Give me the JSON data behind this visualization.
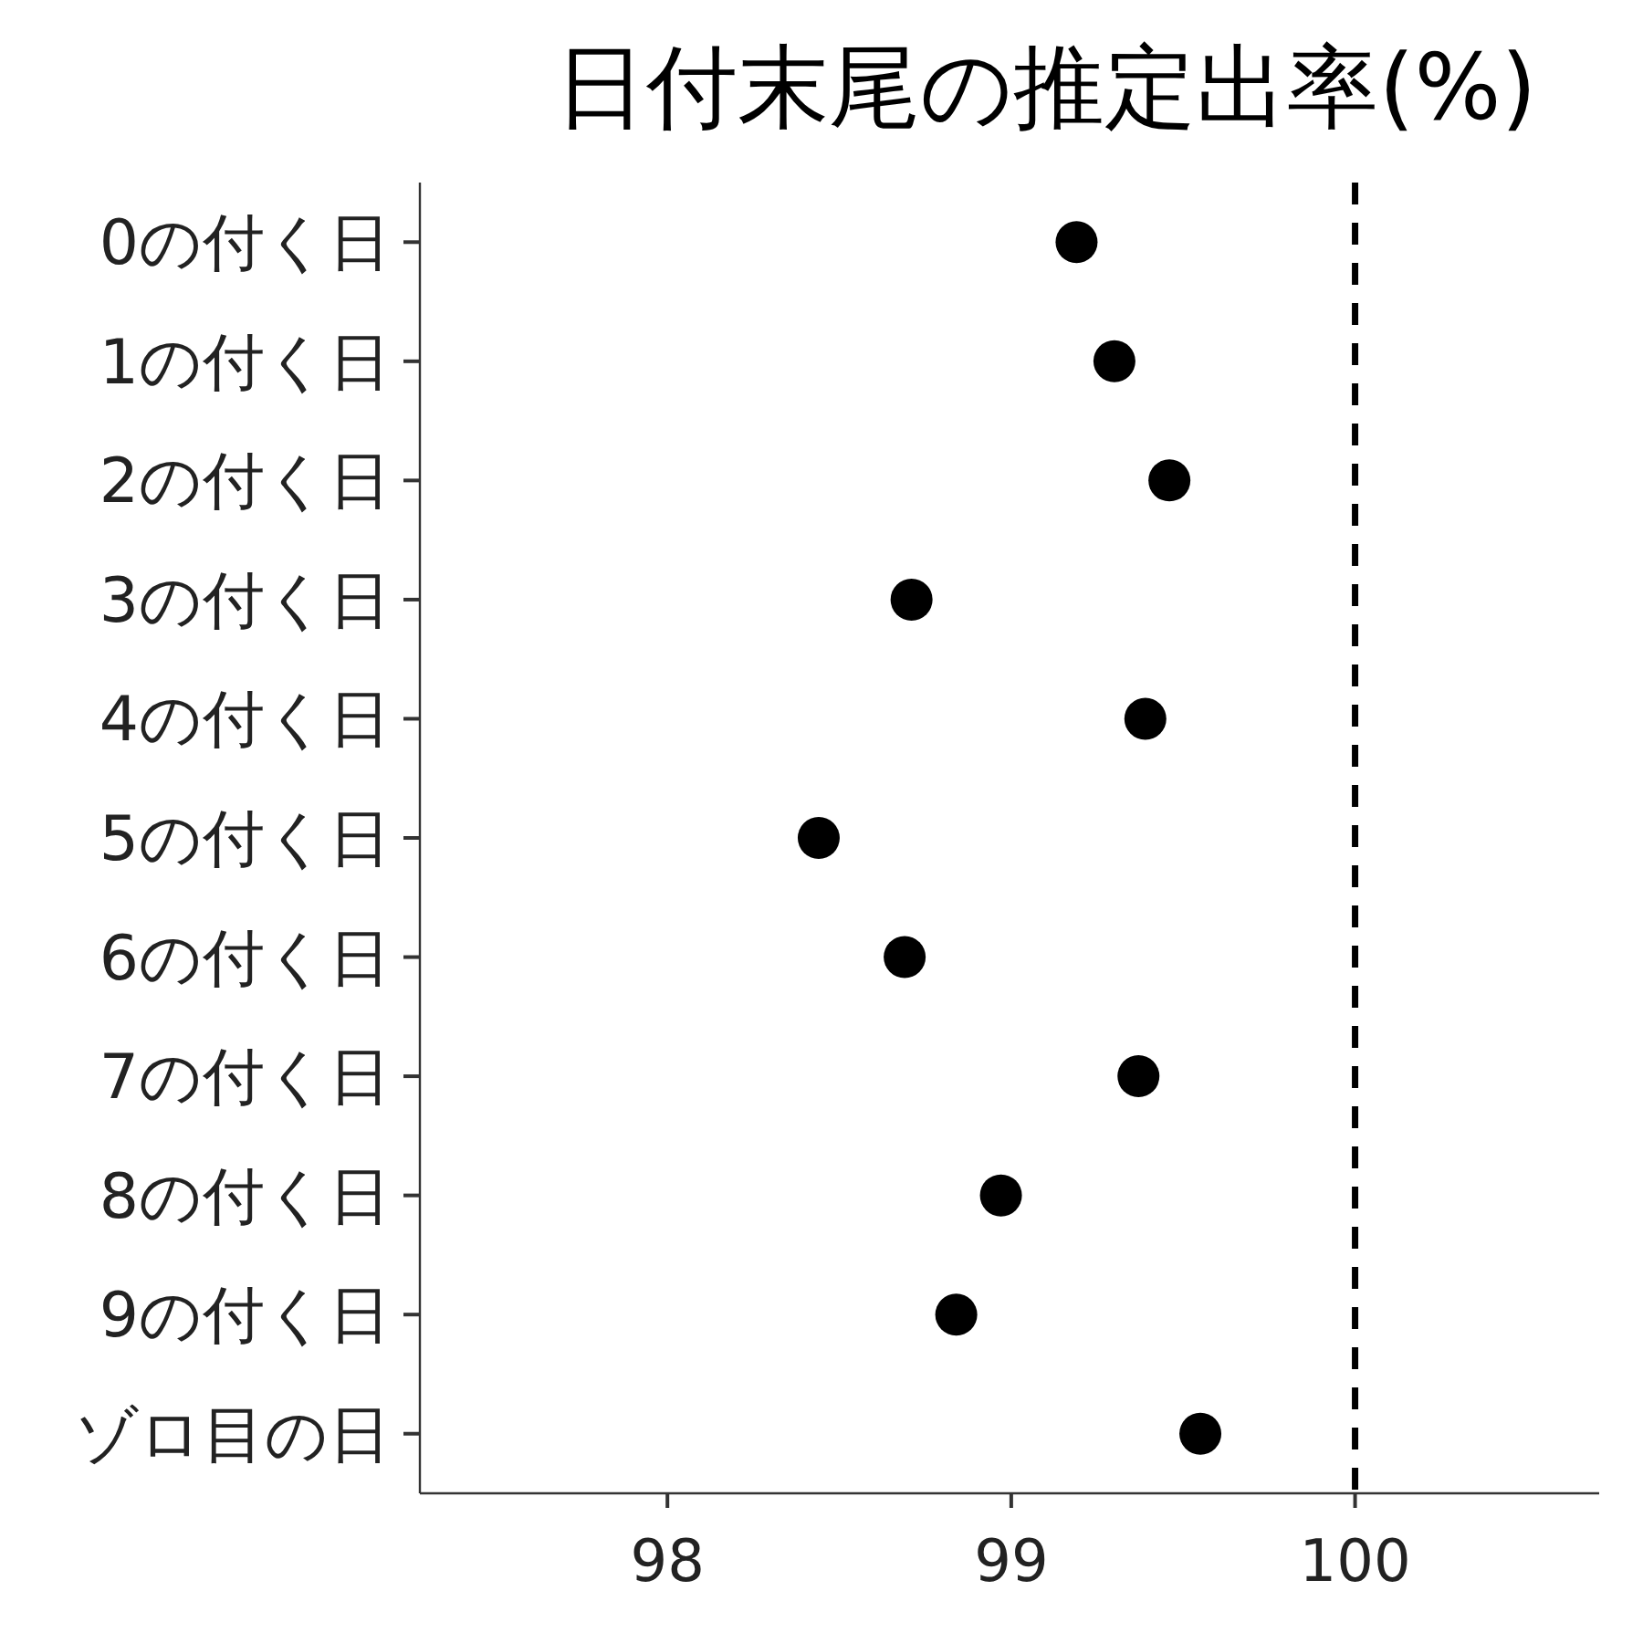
{
  "chart_data": {
    "type": "scatter",
    "orientation": "horizontal",
    "title": "日付末尾の推定出率(%)",
    "categories": [
      "0の付く日",
      "1の付く日",
      "2の付く日",
      "3の付く日",
      "4の付く日",
      "5の付く日",
      "6の付く日",
      "7の付く日",
      "8の付く日",
      "9の付く日",
      "ゾロ目の日"
    ],
    "values": [
      99.19,
      99.3,
      99.46,
      98.71,
      99.39,
      98.44,
      98.69,
      99.37,
      98.97,
      98.84,
      99.55
    ],
    "color": "#000000",
    "marker": "circle",
    "xlim": [
      97.28,
      100.71
    ],
    "xticks": [
      98,
      99,
      100
    ],
    "ref_lines": [
      {
        "axis": "x",
        "value": 100,
        "line_style": "dashed",
        "color": "#000000"
      }
    ]
  }
}
